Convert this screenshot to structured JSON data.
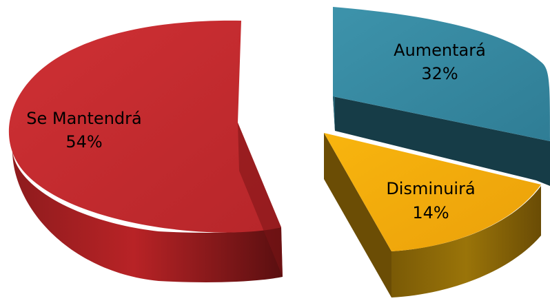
{
  "chart_data": {
    "type": "pie",
    "categories": [
      "Aumentará",
      "Disminuirá",
      "Se Mantendrá"
    ],
    "values": [
      32,
      14,
      54
    ],
    "value_labels": [
      "32%",
      "14%",
      "54%"
    ],
    "colors": [
      "#3a8fa8",
      "#f5ad0c",
      "#c32c2f"
    ],
    "style": "3d-exploded"
  }
}
